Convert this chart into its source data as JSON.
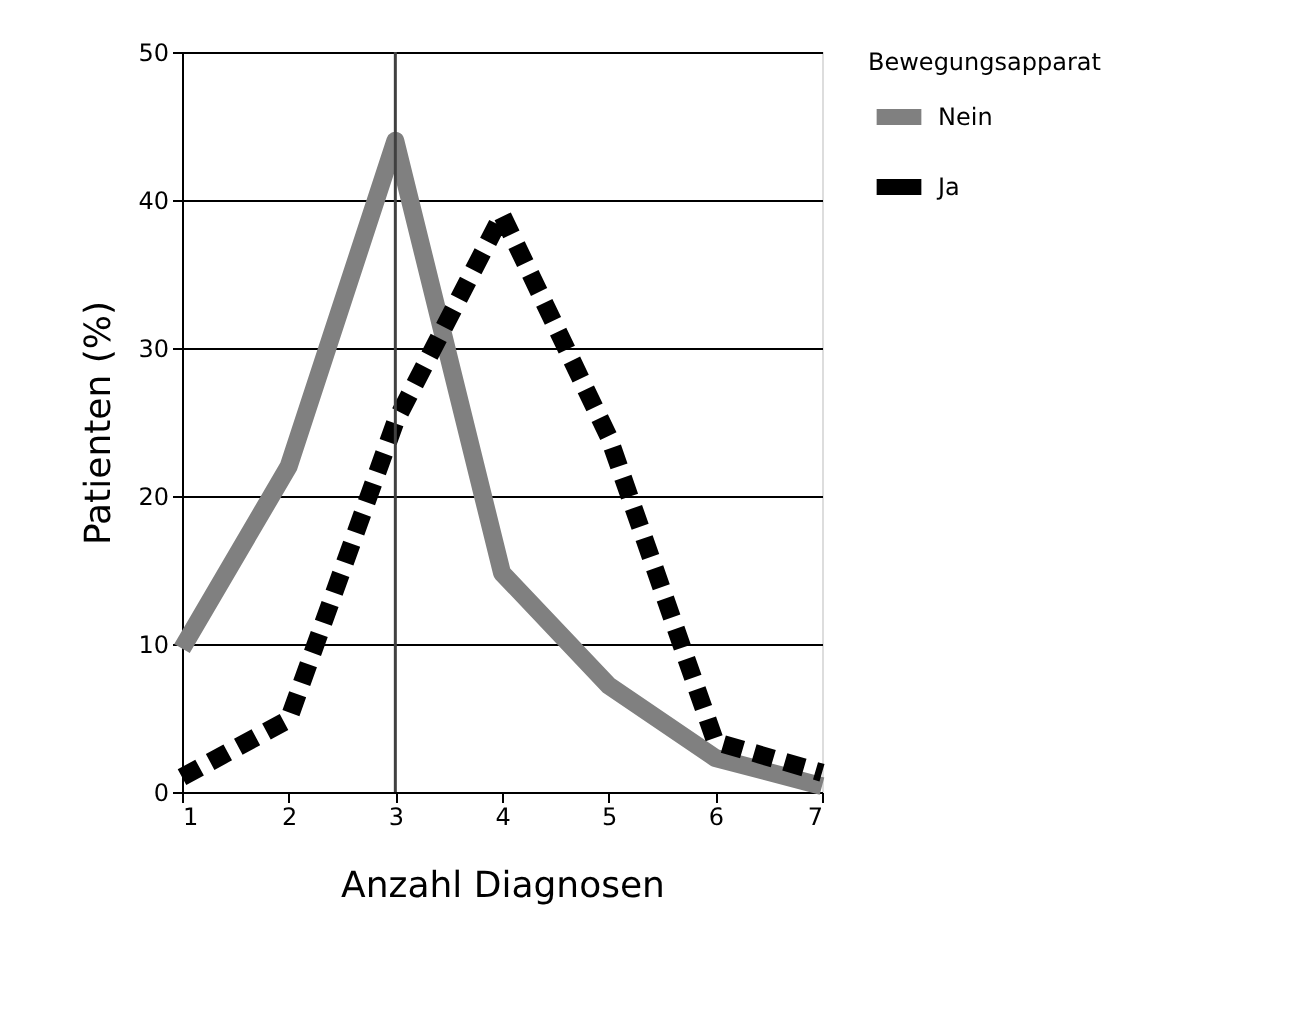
{
  "chart_data": {
    "type": "line",
    "xlabel": "Anzahl Diagnosen",
    "ylabel": "Patienten (%)",
    "legend_title": "Bewegungsapparat",
    "x": [
      1,
      2,
      3,
      4,
      5,
      6,
      7
    ],
    "xlim": [
      1,
      7
    ],
    "xticks": [
      1,
      2,
      3,
      4,
      5,
      6,
      7
    ],
    "ylim": [
      0,
      50
    ],
    "yticks": [
      0,
      10,
      20,
      30,
      40,
      50
    ],
    "grid": "y",
    "legend": "right",
    "ref_lines": [
      {
        "axis": "x",
        "value": 3,
        "color": "#404040"
      }
    ],
    "series": [
      {
        "name": "Nein",
        "color": "#808080",
        "line_style": "solid",
        "values": [
          9.7,
          22,
          44,
          14.8,
          7.2,
          2.3,
          0.4
        ]
      },
      {
        "name": "Ja",
        "color": "#000000",
        "line_style": "dashed",
        "values": [
          1,
          4.9,
          25,
          39,
          24,
          3.4,
          1.3
        ]
      }
    ]
  }
}
